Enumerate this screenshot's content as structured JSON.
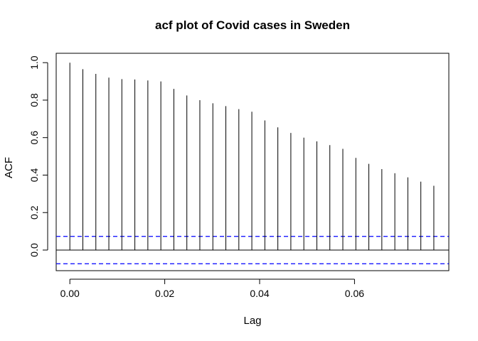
{
  "chart_data": {
    "type": "bar",
    "title": "acf plot of Covid cases in Sweden",
    "xlabel": "Lag",
    "ylabel": "ACF",
    "xlim": [
      -0.00288,
      0.07988
    ],
    "ylim": [
      -0.11,
      1.05
    ],
    "x_ticks": [
      0.0,
      0.02,
      0.04,
      0.06
    ],
    "x_tick_labels": [
      "0.00",
      "0.02",
      "0.04",
      "0.06"
    ],
    "y_ticks": [
      0.0,
      0.2,
      0.4,
      0.6,
      0.8,
      1.0
    ],
    "y_tick_labels": [
      "0.0",
      "0.2",
      "0.4",
      "0.6",
      "0.8",
      "1.0"
    ],
    "lags": [
      0.0,
      0.00274,
      0.00548,
      0.00822,
      0.01096,
      0.0137,
      0.01644,
      0.01918,
      0.02192,
      0.02466,
      0.0274,
      0.03014,
      0.03288,
      0.03562,
      0.03836,
      0.0411,
      0.04384,
      0.04658,
      0.04932,
      0.05206,
      0.0548,
      0.05754,
      0.06028,
      0.06302,
      0.06576,
      0.0685,
      0.07124,
      0.07398,
      0.07672
    ],
    "acf": [
      1.0,
      0.965,
      0.94,
      0.92,
      0.912,
      0.91,
      0.905,
      0.9,
      0.86,
      0.825,
      0.8,
      0.783,
      0.768,
      0.752,
      0.738,
      0.692,
      0.655,
      0.625,
      0.6,
      0.58,
      0.56,
      0.54,
      0.492,
      0.46,
      0.432,
      0.41,
      0.388,
      0.365,
      0.343
    ],
    "confidence_bound": 0.073,
    "colors": {
      "bars": "#000000",
      "zero_line": "#000000",
      "confidence_lines": "#0000ff"
    },
    "grid": false
  }
}
